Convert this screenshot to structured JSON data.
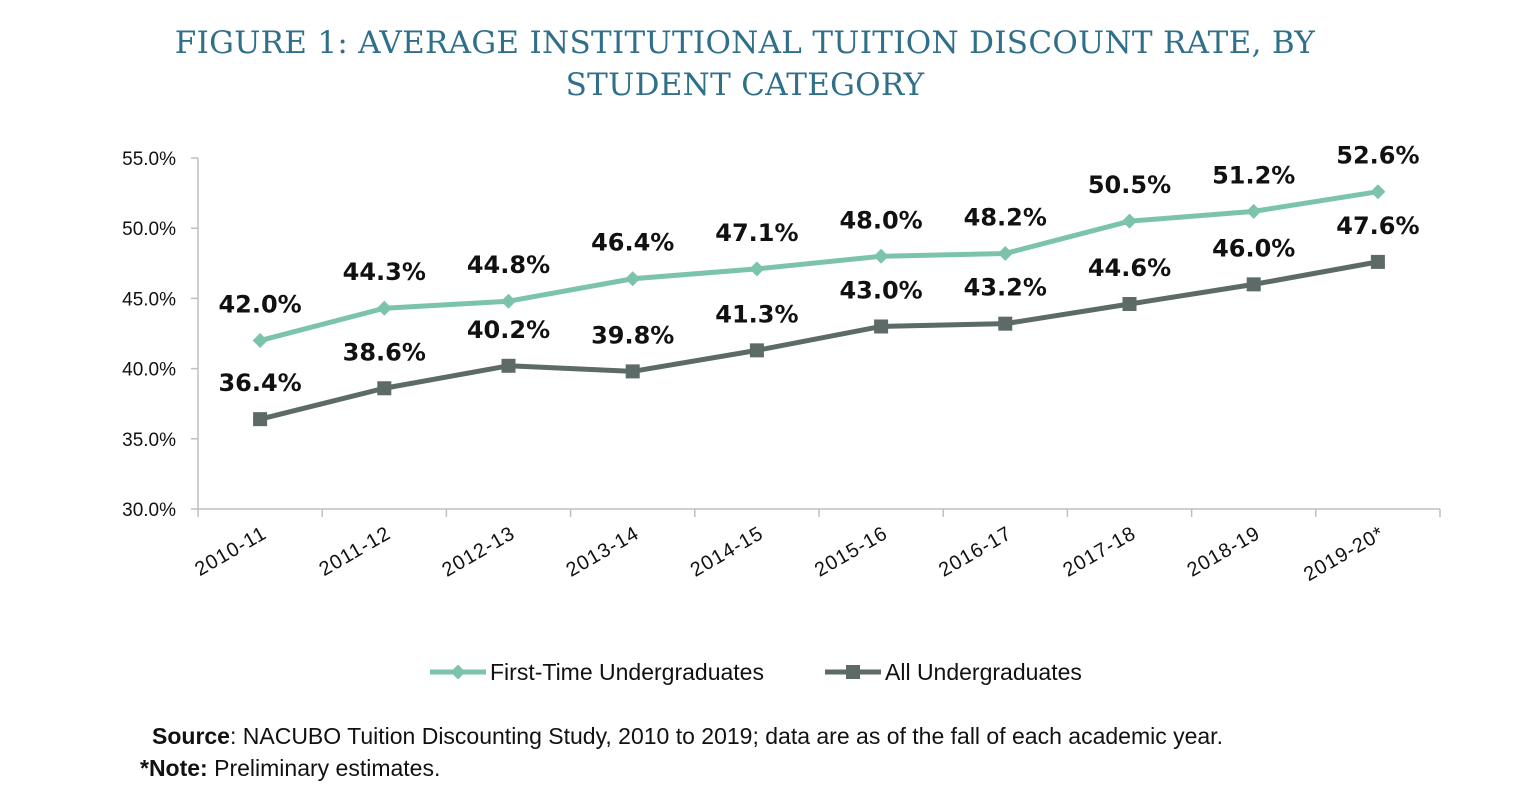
{
  "chart_data": {
    "type": "line",
    "title_line1": "FIGURE 1: AVERAGE INSTITUTIONAL TUITION DISCOUNT RATE, BY",
    "title_line2": "STUDENT CATEGORY",
    "categories": [
      "2010-11",
      "2011-12",
      "2012-13",
      "2013-14",
      "2014-15",
      "2015-16",
      "2016-17",
      "2017-18",
      "2018-19",
      "2019-20*"
    ],
    "ylim": [
      30,
      55
    ],
    "yticks": [
      30,
      35,
      40,
      45,
      50,
      55
    ],
    "ytick_labels": [
      "30.0%",
      "35.0%",
      "40.0%",
      "45.0%",
      "50.0%",
      "55.0%"
    ],
    "grid": false,
    "legend_position": "bottom",
    "series": [
      {
        "name": "First-Time Undergraduates",
        "color": "#7cc3ad",
        "marker": "diamond",
        "values": [
          42.0,
          44.3,
          44.8,
          46.4,
          47.1,
          48.0,
          48.2,
          50.5,
          51.2,
          52.6
        ],
        "labels": [
          "42.0%",
          "44.3%",
          "44.8%",
          "46.4%",
          "47.1%",
          "48.0%",
          "48.2%",
          "50.5%",
          "51.2%",
          "52.6%"
        ]
      },
      {
        "name": "All Undergraduates",
        "color": "#5c6a68",
        "marker": "square",
        "values": [
          36.4,
          38.6,
          40.2,
          39.8,
          41.3,
          43.0,
          43.2,
          44.6,
          46.0,
          47.6
        ],
        "labels": [
          "36.4%",
          "38.6%",
          "40.2%",
          "39.8%",
          "41.3%",
          "43.0%",
          "43.2%",
          "44.6%",
          "46.0%",
          "47.6%"
        ]
      }
    ]
  },
  "source": {
    "label": "Source",
    "text": ": NACUBO Tuition Discounting Study, 2010 to 2019; data are as of the fall of each academic year."
  },
  "note": {
    "label": "*Note:",
    "text": " Preliminary estimates."
  }
}
